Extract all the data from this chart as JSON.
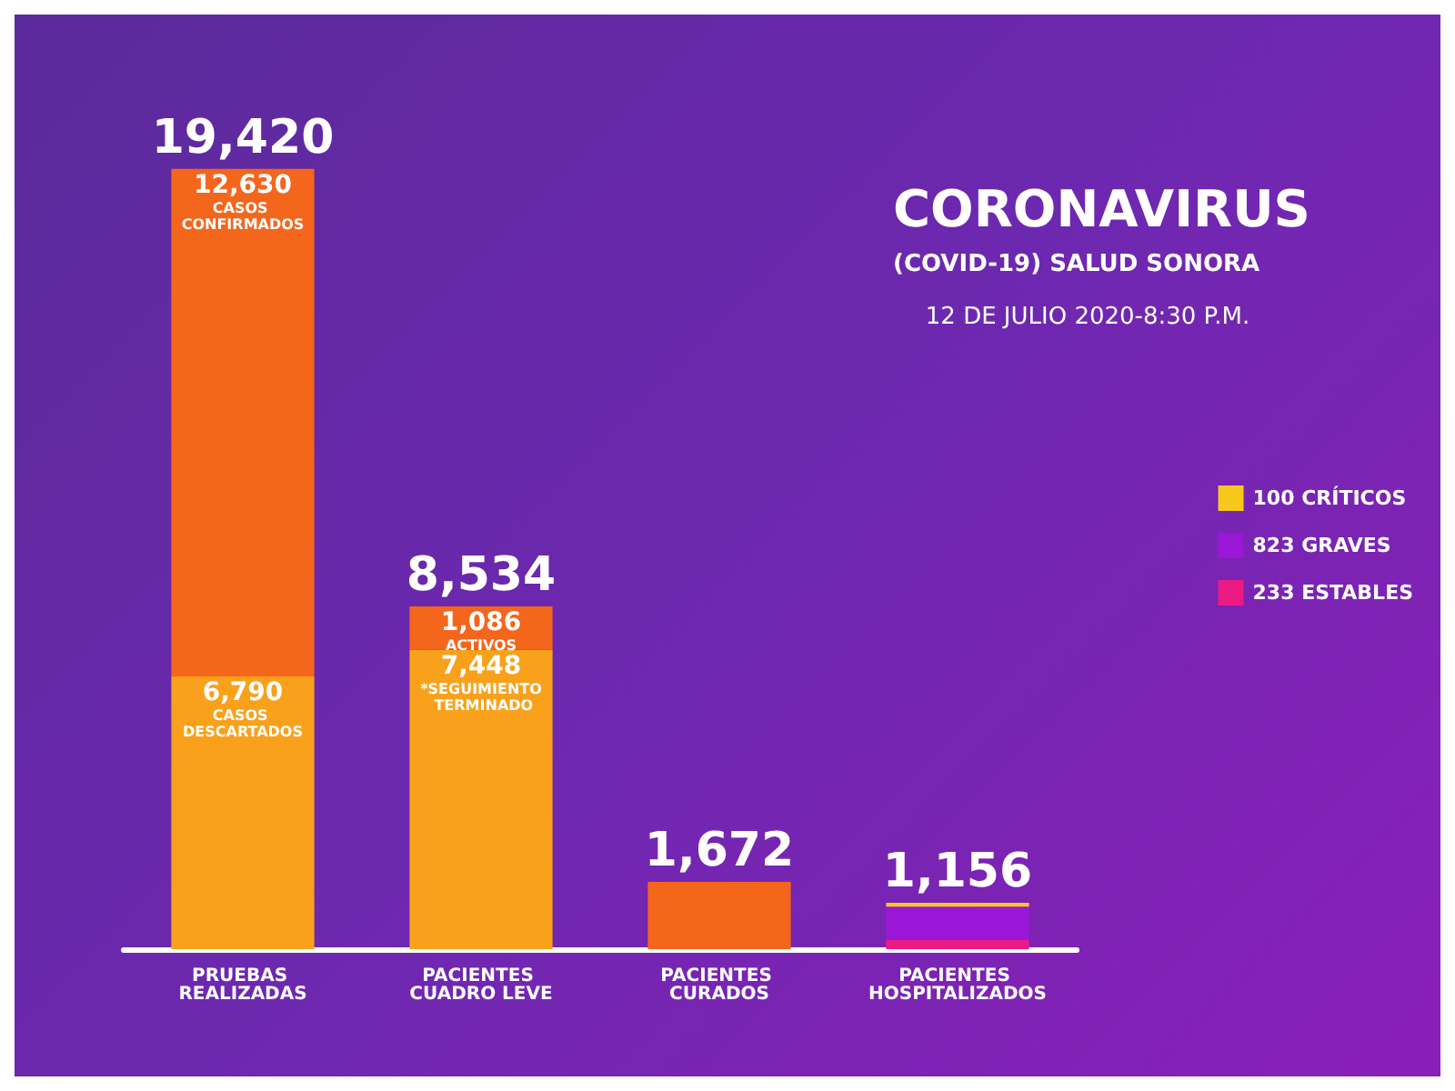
{
  "chart_data": {
    "type": "bar",
    "stacked": true,
    "title": "CORONAVIRUS",
    "subtitle": "(COVID-19) SALUD SONORA",
    "categories": [
      "PRUEBAS REALIZADAS",
      "PACIENTES CUADRO LEVE",
      "PACIENTES CURADOS",
      "PACIENTES HOSPITALIZADOS"
    ],
    "series": [
      {
        "color": "#f9a11b",
        "values": [
          6790,
          7448,
          null,
          null
        ],
        "value_labels": [
          "6,790",
          "7,448",
          null,
          null
        ]
      },
      {
        "color": "#f4661c",
        "values": [
          12630,
          1086,
          1672,
          null
        ],
        "value_labels": [
          "12,630",
          "1,086",
          null,
          null
        ]
      },
      {
        "name": "233 ESTABLES",
        "color": "#ec1a83",
        "values": [
          null,
          null,
          null,
          233
        ]
      },
      {
        "name": "823 GRAVES",
        "color": "#9a17d8",
        "values": [
          null,
          null,
          null,
          823
        ]
      },
      {
        "name": "100 CRÍTICOS",
        "color": "#f7c81c",
        "values": [
          null,
          null,
          null,
          100
        ]
      }
    ],
    "totals": [
      "19,420",
      "8,534",
      "1,672",
      "1,156"
    ],
    "annotations": [
      {
        "text": "CASOS CONFIRMADOS",
        "x": "PRUEBAS REALIZADAS",
        "y": 19420
      },
      {
        "text": "CASOS DESCARTADOS",
        "x": "PRUEBAS REALIZADAS",
        "y": 6790
      },
      {
        "text": "ACTIVOS",
        "x": "PACIENTES CUADRO LEVE",
        "y": 8534
      },
      {
        "text": "*SEGUIMIENTO TERMINADO",
        "x": "PACIENTES CUADRO LEVE",
        "y": 7448
      },
      "12 DE JULIO 2020-8:30 P.M."
    ],
    "legend": "right",
    "grid": false
  }
}
